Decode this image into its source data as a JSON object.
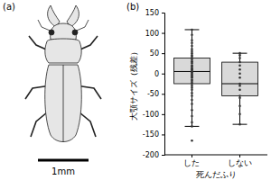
{
  "chart_data": {
    "type": "box",
    "panel_labels": [
      "(a)",
      "(b)"
    ],
    "scale_bar_label": "1mm",
    "x_label": "死んだふり",
    "y_label": "大顎サイズ（残差）",
    "categories": [
      "した",
      "しない"
    ],
    "boxes": [
      {
        "min": -130,
        "q1": -25,
        "median": 5,
        "q3": 38,
        "max": 108
      },
      {
        "min": -125,
        "q1": -55,
        "median": -25,
        "q3": 28,
        "max": 50
      }
    ],
    "points": [
      [
        108,
        95,
        82,
        75,
        68,
        60,
        55,
        50,
        45,
        42,
        38,
        35,
        30,
        28,
        25,
        20,
        18,
        15,
        12,
        10,
        8,
        5,
        3,
        0,
        -3,
        -5,
        -8,
        -10,
        -15,
        -18,
        -22,
        -25,
        -30,
        -35,
        -40,
        -48,
        -55,
        -65,
        -75,
        -90,
        -105,
        -120,
        -130,
        -165
      ],
      [
        50,
        45,
        38,
        28,
        20,
        10,
        0,
        -10,
        -25,
        -30,
        -40,
        -55,
        -60,
        -80,
        -100,
        -125
      ]
    ],
    "color": "#d9d9d9",
    "ylim": [
      -200,
      150
    ],
    "yticks": [
      -200,
      -150,
      -100,
      -50,
      0,
      50,
      100,
      150
    ]
  }
}
